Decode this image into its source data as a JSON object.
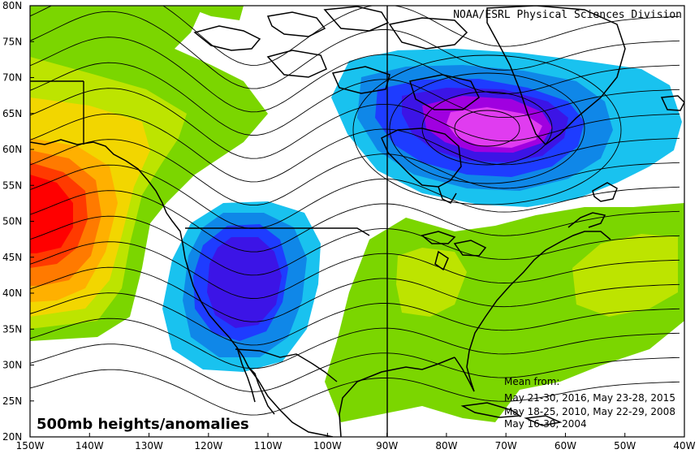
{
  "credit": "NOAA/ESRL Physical Sciences Division",
  "caption": "500mb heights/anomalies",
  "mean_lines": [
    "Mean from:",
    "May 21-30, 2016, May 23-28, 2015",
    "May 18-25, 2010, May 22-29, 2008",
    "May 16-30, 2004"
  ],
  "lat_labels": [
    "80N",
    "75N",
    "70N",
    "65N",
    "60N",
    "55N",
    "50N",
    "45N",
    "40N",
    "35N",
    "30N",
    "25N",
    "20N"
  ],
  "lon_labels": [
    "150W",
    "140W",
    "130W",
    "120W",
    "110W",
    "100W",
    "90W",
    "80W",
    "70W",
    "60W",
    "50W",
    "40W"
  ],
  "map": {
    "lat_range": [
      20,
      80
    ],
    "lon_range": [
      -150,
      -40
    ],
    "projection": "cylindrical equidistant"
  },
  "colors": {
    "anom_pos_1": "#7bd600",
    "anom_pos_2": "#bde400",
    "anom_pos_3": "#f2d600",
    "anom_pos_4": "#ffb000",
    "anom_pos_5": "#ff7a00",
    "anom_pos_6": "#ff3a00",
    "anom_pos_7": "#ff0000",
    "anom_neg_1": "#19c2ef",
    "anom_neg_2": "#0f87e8",
    "anom_neg_3": "#1e3cff",
    "anom_neg_4": "#3c14e6",
    "anom_neg_5": "#a000e0",
    "anom_neg_6": "#e03cf0"
  }
}
